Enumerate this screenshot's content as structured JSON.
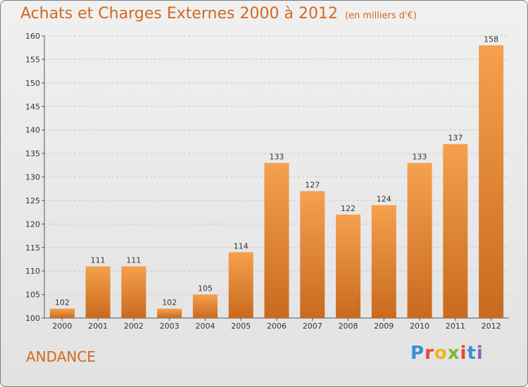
{
  "header": {
    "title": "Achats et Charges Externes 2000 à 2012",
    "unit": "(en milliers d'€)"
  },
  "footer": {
    "location": "ANDANCE",
    "logo": "Proxiti"
  },
  "colors": {
    "title": "#d2691e",
    "bar_top": "#f5a14e",
    "bar_bottom": "#c96a1e"
  },
  "chart_data": {
    "type": "bar",
    "title": "Achats et Charges Externes 2000 à 2012",
    "subtitle": "(en milliers d'€)",
    "categories": [
      "2000",
      "2001",
      "2002",
      "2003",
      "2004",
      "2005",
      "2006",
      "2007",
      "2008",
      "2009",
      "2010",
      "2011",
      "2012"
    ],
    "values": [
      102,
      111,
      111,
      102,
      105,
      114,
      133,
      127,
      122,
      124,
      133,
      137,
      158
    ],
    "ylim": [
      100,
      160
    ],
    "yticks": [
      100,
      105,
      110,
      115,
      120,
      125,
      130,
      135,
      140,
      145,
      150,
      155,
      160
    ],
    "grid": true,
    "data_labels": true
  }
}
